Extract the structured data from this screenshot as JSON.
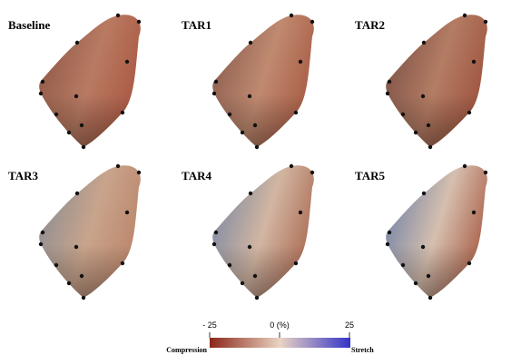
{
  "panels": [
    {
      "label": "Baseline"
    },
    {
      "label": "TAR1"
    },
    {
      "label": "TAR2"
    },
    {
      "label": "TAR3"
    },
    {
      "label": "TAR4"
    },
    {
      "label": "TAR5"
    }
  ],
  "colorbar": {
    "ticks": [
      "- 25",
      "0 (%)",
      "25"
    ],
    "min_label": "Compression",
    "max_label": "Stretch"
  }
}
